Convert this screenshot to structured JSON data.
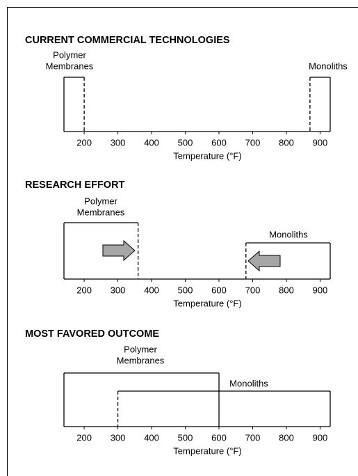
{
  "panels": [
    {
      "title": "CURRENT COMMERCIAL TECHNOLOGIES",
      "xlabel": "Temperature (°F)",
      "xlim": [
        140,
        930
      ],
      "xticks": [
        200,
        300,
        400,
        500,
        600,
        700,
        800,
        900
      ],
      "regions": [
        {
          "label": [
            "Polymer",
            "Membranes"
          ],
          "start": 140,
          "end": 200,
          "dashed_side": "right"
        },
        {
          "label": [
            "Monoliths"
          ],
          "start": 870,
          "end": 930,
          "dashed_side": "left"
        }
      ]
    },
    {
      "title": "RESEARCH EFFORT",
      "xlabel": "Temperature (°F)",
      "xlim": [
        140,
        930
      ],
      "xticks": [
        200,
        300,
        400,
        500,
        600,
        700,
        800,
        900
      ],
      "regions": [
        {
          "label": [
            "Polymer",
            "Membranes"
          ],
          "start": 140,
          "end": 360,
          "dashed_side": "right"
        },
        {
          "label": [
            "Monoliths"
          ],
          "start": 680,
          "end": 930,
          "dashed_side": "left"
        }
      ]
    },
    {
      "title": "MOST FAVORED OUTCOME",
      "xlabel": "Temperature (°F)",
      "xlim": [
        140,
        930
      ],
      "xticks": [
        200,
        300,
        400,
        500,
        600,
        700,
        800,
        900
      ],
      "regions": [
        {
          "label": [
            "Polymer",
            "Membranes"
          ],
          "start": 140,
          "end": 600
        },
        {
          "label": [
            "Monoliths"
          ],
          "start": 300,
          "end": 930,
          "dashed_side": "left"
        }
      ]
    }
  ]
}
